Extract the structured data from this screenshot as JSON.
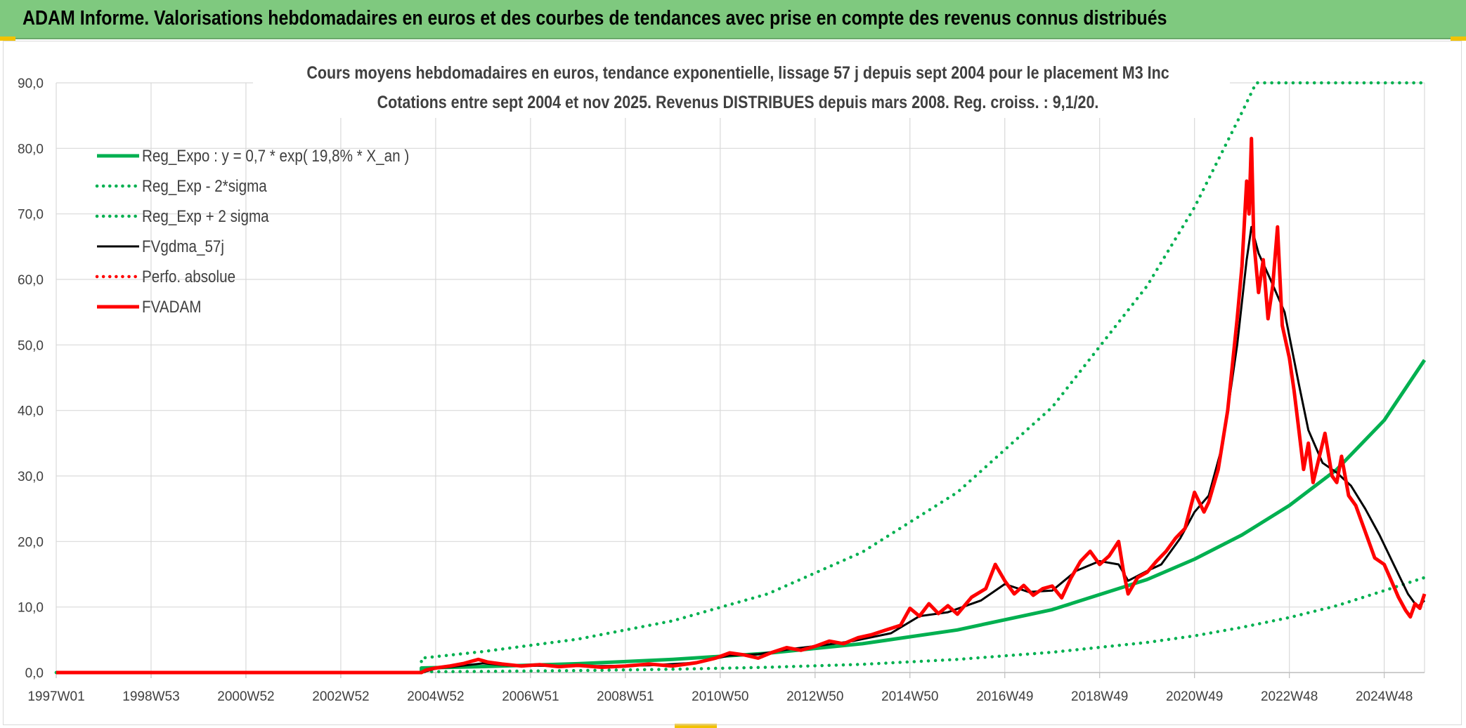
{
  "banner": {
    "title": "ADAM Informe. Valorisations hebdomadaires en euros et des courbes de tendances avec prise en compte des revenus connus distribués"
  },
  "colors": {
    "banner_bg": "#7fc97f",
    "reg_green": "#00b050",
    "fvgdma_black": "#000000",
    "fvadam_red": "#ff0000",
    "grid": "#d9d9d9",
    "text": "#404040"
  },
  "chart_data": {
    "type": "line",
    "title": "Cours moyens hebdomadaires en euros, tendance exponentielle, lissage 57 j depuis sept 2004 pour le placement M3 Inc",
    "subtitle": "Cotations entre sept 2004 et nov 2025. Revenus DISTRIBUES depuis mars 2008. Reg. croiss. : 9,1/20.",
    "xlabel": "",
    "ylabel": "",
    "ylim": [
      0,
      90
    ],
    "yticks": [
      "0,0",
      "10,0",
      "20,0",
      "30,0",
      "40,0",
      "50,0",
      "60,0",
      "70,0",
      "80,0",
      "90,0"
    ],
    "xlim": [
      1997.0,
      2025.85
    ],
    "xticks": [
      "1997W01",
      "1998W53",
      "2000W52",
      "2002W52",
      "2004W52",
      "2006W51",
      "2008W51",
      "2010W50",
      "2012W50",
      "2014W50",
      "2016W49",
      "2018W49",
      "2020W49",
      "2022W48",
      "2024W48"
    ],
    "xtick_positions": [
      1997.0,
      1999.0,
      2001.0,
      2003.0,
      2005.0,
      2007.0,
      2009.0,
      2011.0,
      2013.0,
      2015.0,
      2017.0,
      2019.0,
      2021.0,
      2023.0,
      2025.0
    ],
    "grid": true,
    "legend_position": "top-left",
    "series": [
      {
        "name": "Reg_Expo : y = 0,7 * exp( 19,8% *  X_an )",
        "style": "solid-thick",
        "color": "#00b050",
        "points": [
          [
            1997.0,
            0
          ],
          [
            2004.7,
            0
          ],
          [
            2004.7,
            0.7
          ],
          [
            2006,
            0.91
          ],
          [
            2008,
            1.35
          ],
          [
            2010,
            2.0
          ],
          [
            2012,
            2.95
          ],
          [
            2014,
            4.4
          ],
          [
            2016,
            6.5
          ],
          [
            2018,
            9.6
          ],
          [
            2020,
            14.2
          ],
          [
            2021,
            17.3
          ],
          [
            2022,
            21.0
          ],
          [
            2023,
            25.5
          ],
          [
            2024,
            31.0
          ],
          [
            2025,
            38.5
          ],
          [
            2025.85,
            47.7
          ]
        ]
      },
      {
        "name": "Reg_Exp - 2*sigma",
        "style": "dotted",
        "color": "#00b050",
        "points": [
          [
            1997.0,
            0
          ],
          [
            2004.7,
            0
          ],
          [
            2004.7,
            0.12
          ],
          [
            2006,
            0.17
          ],
          [
            2008,
            0.3
          ],
          [
            2010,
            0.5
          ],
          [
            2012,
            0.8
          ],
          [
            2014,
            1.25
          ],
          [
            2016,
            2.0
          ],
          [
            2018,
            3.1
          ],
          [
            2020,
            4.6
          ],
          [
            2021,
            5.6
          ],
          [
            2022,
            6.9
          ],
          [
            2023,
            8.4
          ],
          [
            2024,
            10.2
          ],
          [
            2025,
            12.5
          ],
          [
            2025.85,
            14.5
          ]
        ]
      },
      {
        "name": "Reg_Exp + 2 sigma",
        "style": "dotted",
        "color": "#00b050",
        "points": [
          [
            1997.0,
            0
          ],
          [
            2004.7,
            0
          ],
          [
            2004.7,
            2.2
          ],
          [
            2006,
            3.2
          ],
          [
            2008,
            5.1
          ],
          [
            2010,
            7.9
          ],
          [
            2012,
            12.0
          ],
          [
            2014,
            18.4
          ],
          [
            2016,
            27.5
          ],
          [
            2018,
            40.5
          ],
          [
            2020,
            59.0
          ],
          [
            2021,
            71.0
          ],
          [
            2022,
            85.5
          ],
          [
            2022.3,
            90
          ],
          [
            2025.85,
            90
          ]
        ]
      },
      {
        "name": "FVgdma_57j",
        "style": "solid",
        "color": "#000000",
        "points": [
          [
            1997.0,
            0
          ],
          [
            2004.7,
            0
          ],
          [
            2005.0,
            0.6
          ],
          [
            2005.5,
            1.0
          ],
          [
            2006.0,
            1.4
          ],
          [
            2006.5,
            1.1
          ],
          [
            2007.5,
            1.0
          ],
          [
            2008.5,
            1.0
          ],
          [
            2009.5,
            1.1
          ],
          [
            2010.5,
            1.5
          ],
          [
            2011.2,
            2.6
          ],
          [
            2011.8,
            2.8
          ],
          [
            2012.5,
            3.6
          ],
          [
            2013.2,
            4.2
          ],
          [
            2013.8,
            4.8
          ],
          [
            2014.6,
            6.0
          ],
          [
            2015.2,
            8.6
          ],
          [
            2015.8,
            9.2
          ],
          [
            2016.5,
            11.0
          ],
          [
            2017.0,
            13.5
          ],
          [
            2017.5,
            12.3
          ],
          [
            2018.0,
            12.5
          ],
          [
            2018.5,
            15.5
          ],
          [
            2019.0,
            17.0
          ],
          [
            2019.4,
            16.5
          ],
          [
            2019.6,
            14.0
          ],
          [
            2020.0,
            15.5
          ],
          [
            2020.3,
            16.5
          ],
          [
            2020.7,
            20.5
          ],
          [
            2021.0,
            24.5
          ],
          [
            2021.3,
            27.0
          ],
          [
            2021.6,
            35.0
          ],
          [
            2021.9,
            50.0
          ],
          [
            2022.1,
            63.0
          ],
          [
            2022.2,
            68.0
          ],
          [
            2022.35,
            64.0
          ],
          [
            2022.6,
            60.0
          ],
          [
            2022.9,
            55.0
          ],
          [
            2023.2,
            44.0
          ],
          [
            2023.4,
            37.0
          ],
          [
            2023.7,
            32.0
          ],
          [
            2024.0,
            30.5
          ],
          [
            2024.3,
            28.5
          ],
          [
            2024.6,
            25.0
          ],
          [
            2024.9,
            21.0
          ],
          [
            2025.2,
            16.5
          ],
          [
            2025.5,
            12.0
          ],
          [
            2025.7,
            10.0
          ],
          [
            2025.85,
            11.0
          ]
        ]
      },
      {
        "name": "Perfo. absolue",
        "style": "dotted",
        "color": "#ff0000",
        "points": []
      },
      {
        "name": "FVADAM",
        "style": "solid-thick",
        "color": "#ff0000",
        "points": [
          [
            1997.0,
            0
          ],
          [
            2004.7,
            0
          ],
          [
            2004.8,
            0.4
          ],
          [
            2005.0,
            0.7
          ],
          [
            2005.3,
            1.0
          ],
          [
            2005.6,
            1.4
          ],
          [
            2005.9,
            2.0
          ],
          [
            2006.1,
            1.6
          ],
          [
            2006.4,
            1.3
          ],
          [
            2006.8,
            1.0
          ],
          [
            2007.2,
            1.2
          ],
          [
            2007.6,
            0.9
          ],
          [
            2008.0,
            1.1
          ],
          [
            2008.5,
            0.8
          ],
          [
            2009.0,
            1.0
          ],
          [
            2009.5,
            1.3
          ],
          [
            2010.0,
            1.0
          ],
          [
            2010.5,
            1.5
          ],
          [
            2010.9,
            2.2
          ],
          [
            2011.2,
            3.0
          ],
          [
            2011.5,
            2.7
          ],
          [
            2011.8,
            2.2
          ],
          [
            2012.1,
            3.1
          ],
          [
            2012.4,
            3.8
          ],
          [
            2012.7,
            3.4
          ],
          [
            2013.0,
            4.0
          ],
          [
            2013.3,
            4.8
          ],
          [
            2013.6,
            4.4
          ],
          [
            2013.9,
            5.3
          ],
          [
            2014.2,
            5.8
          ],
          [
            2014.5,
            6.5
          ],
          [
            2014.8,
            7.2
          ],
          [
            2015.0,
            9.8
          ],
          [
            2015.2,
            8.6
          ],
          [
            2015.4,
            10.5
          ],
          [
            2015.6,
            9.0
          ],
          [
            2015.8,
            10.2
          ],
          [
            2016.0,
            8.9
          ],
          [
            2016.3,
            11.5
          ],
          [
            2016.6,
            12.8
          ],
          [
            2016.8,
            16.5
          ],
          [
            2017.0,
            14.0
          ],
          [
            2017.2,
            12.0
          ],
          [
            2017.4,
            13.3
          ],
          [
            2017.6,
            11.8
          ],
          [
            2017.8,
            12.8
          ],
          [
            2018.0,
            13.2
          ],
          [
            2018.2,
            11.4
          ],
          [
            2018.4,
            14.5
          ],
          [
            2018.6,
            17.0
          ],
          [
            2018.8,
            18.5
          ],
          [
            2019.0,
            16.5
          ],
          [
            2019.2,
            17.8
          ],
          [
            2019.4,
            20.0
          ],
          [
            2019.5,
            15.5
          ],
          [
            2019.6,
            12.0
          ],
          [
            2019.8,
            14.5
          ],
          [
            2020.0,
            15.3
          ],
          [
            2020.2,
            17.0
          ],
          [
            2020.4,
            18.5
          ],
          [
            2020.6,
            20.5
          ],
          [
            2020.8,
            22.0
          ],
          [
            2021.0,
            27.5
          ],
          [
            2021.2,
            24.5
          ],
          [
            2021.3,
            26.0
          ],
          [
            2021.5,
            31.0
          ],
          [
            2021.7,
            40.0
          ],
          [
            2021.9,
            54.0
          ],
          [
            2022.0,
            62.0
          ],
          [
            2022.1,
            75.0
          ],
          [
            2022.15,
            70.0
          ],
          [
            2022.2,
            81.5
          ],
          [
            2022.25,
            66.0
          ],
          [
            2022.35,
            58.0
          ],
          [
            2022.45,
            63.0
          ],
          [
            2022.55,
            54.0
          ],
          [
            2022.65,
            59.0
          ],
          [
            2022.75,
            68.0
          ],
          [
            2022.85,
            53.0
          ],
          [
            2023.0,
            48.0
          ],
          [
            2023.1,
            43.0
          ],
          [
            2023.2,
            37.0
          ],
          [
            2023.3,
            31.0
          ],
          [
            2023.4,
            35.0
          ],
          [
            2023.5,
            29.0
          ],
          [
            2023.6,
            32.0
          ],
          [
            2023.75,
            36.5
          ],
          [
            2023.9,
            30.0
          ],
          [
            2024.0,
            29.0
          ],
          [
            2024.1,
            33.0
          ],
          [
            2024.25,
            27.0
          ],
          [
            2024.4,
            25.5
          ],
          [
            2024.6,
            21.5
          ],
          [
            2024.8,
            17.5
          ],
          [
            2025.0,
            16.5
          ],
          [
            2025.15,
            14.0
          ],
          [
            2025.3,
            11.5
          ],
          [
            2025.45,
            9.5
          ],
          [
            2025.55,
            8.5
          ],
          [
            2025.65,
            10.5
          ],
          [
            2025.75,
            9.8
          ],
          [
            2025.85,
            12.0
          ]
        ]
      }
    ]
  }
}
